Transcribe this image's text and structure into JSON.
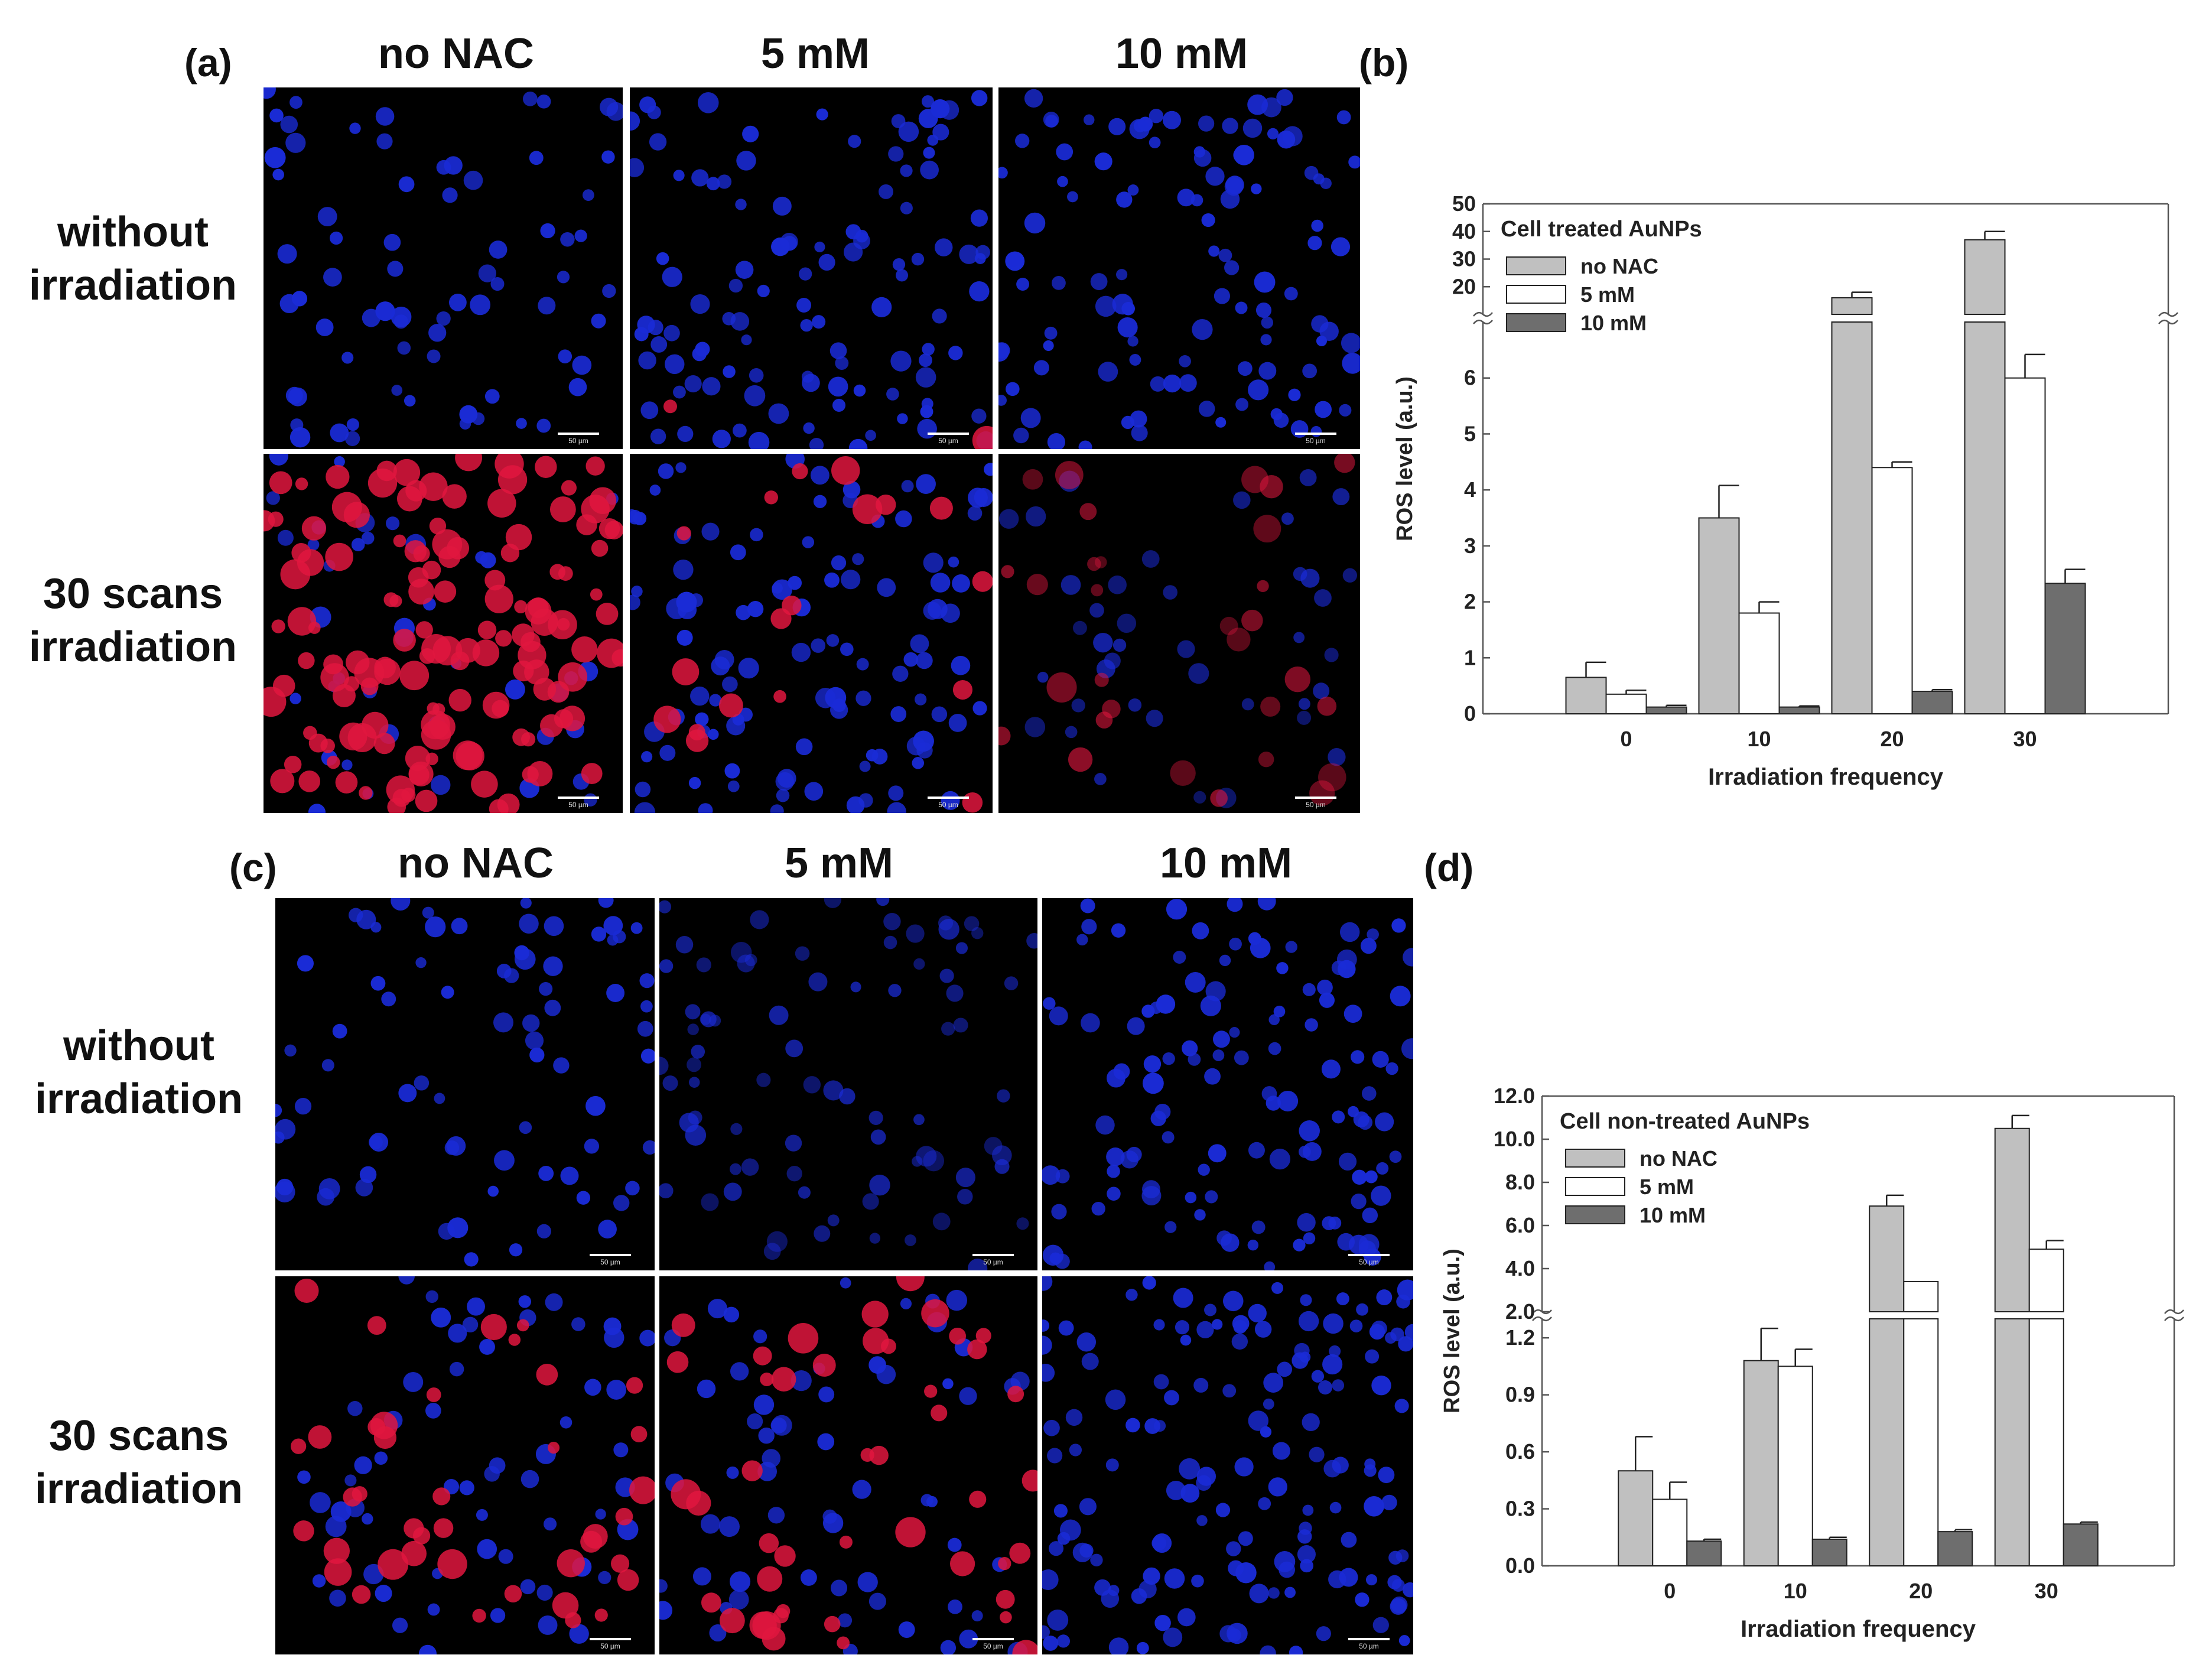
{
  "panel_a": {
    "letter": "(a)",
    "columns": [
      "no NAC",
      "5 mM",
      "10 mM"
    ],
    "rows": [
      {
        "line1": "without",
        "line2": "irradiation"
      },
      {
        "line1": "30 scans",
        "line2": "irradiation"
      }
    ]
  },
  "panel_c": {
    "letter": "(c)",
    "columns": [
      "no NAC",
      "5 mM",
      "10 mM"
    ],
    "rows": [
      {
        "line1": "without",
        "line2": "irradiation"
      },
      {
        "line1": "30 scans",
        "line2": "irradiation"
      }
    ]
  },
  "panel_b": {
    "letter": "(b)"
  },
  "panel_d": {
    "letter": "(d)"
  },
  "scale_bar_text": "50 µm",
  "colors": {
    "no_nac": "#c0c0c0",
    "mM5": "#ffffff",
    "mM10": "#6e6e6e",
    "nucleus_blue": "#1a2bd6",
    "ros_red": "#e0163e"
  },
  "chart_data": [
    {
      "type": "bar",
      "panel": "b",
      "title": "Cell treated AuNPs",
      "xlabel": "Irradiation frequency",
      "ylabel": "ROS level (a.u.)",
      "categories": [
        "0",
        "10",
        "20",
        "30"
      ],
      "series": [
        {
          "name": "no NAC",
          "values": [
            0.65,
            3.5,
            16,
            37
          ],
          "errors": [
            0.27,
            0.58,
            2,
            3
          ]
        },
        {
          "name": "5 mM",
          "values": [
            0.35,
            1.8,
            4.4,
            6.0
          ],
          "errors": [
            0.07,
            0.2,
            0.1,
            0.42
          ]
        },
        {
          "name": "10 mM",
          "values": [
            0.12,
            0.12,
            0.4,
            2.33
          ],
          "errors": [
            0.03,
            0.02,
            0.03,
            0.25
          ]
        }
      ],
      "axis_break": {
        "lower_range": [
          0,
          7
        ],
        "upper_range": [
          10,
          50
        ]
      },
      "yticks_lower": [
        "0",
        "1",
        "2",
        "3",
        "4",
        "5",
        "6"
      ],
      "yticks_upper": [
        "20",
        "30",
        "40",
        "50"
      ],
      "legend_position": "top-left"
    },
    {
      "type": "bar",
      "panel": "d",
      "title": "Cell non-treated AuNPs",
      "xlabel": "Irradiation frequency",
      "ylabel": "ROS level (a.u.)",
      "categories": [
        "0",
        "10",
        "20",
        "30"
      ],
      "series": [
        {
          "name": "no NAC",
          "values": [
            0.5,
            1.08,
            6.9,
            10.5
          ],
          "errors": [
            0.18,
            0.17,
            0.5,
            0.6
          ]
        },
        {
          "name": "5 mM",
          "values": [
            0.35,
            1.05,
            3.4,
            4.9
          ],
          "errors": [
            0.09,
            0.09,
            0,
            0.4
          ]
        },
        {
          "name": "10 mM",
          "values": [
            0.13,
            0.14,
            0.18,
            0.22
          ],
          "errors": [
            0.01,
            0.01,
            0.01,
            0.01
          ]
        }
      ],
      "axis_break": {
        "lower_range": [
          0,
          1.3
        ],
        "upper_range": [
          2,
          12
        ]
      },
      "yticks_lower": [
        "0.0",
        "0.3",
        "0.6",
        "0.9",
        "1.2"
      ],
      "yticks_upper": [
        "2.0",
        "4.0",
        "6.0",
        "8.0",
        "10.0",
        "12.0"
      ],
      "legend_position": "top-left"
    }
  ]
}
